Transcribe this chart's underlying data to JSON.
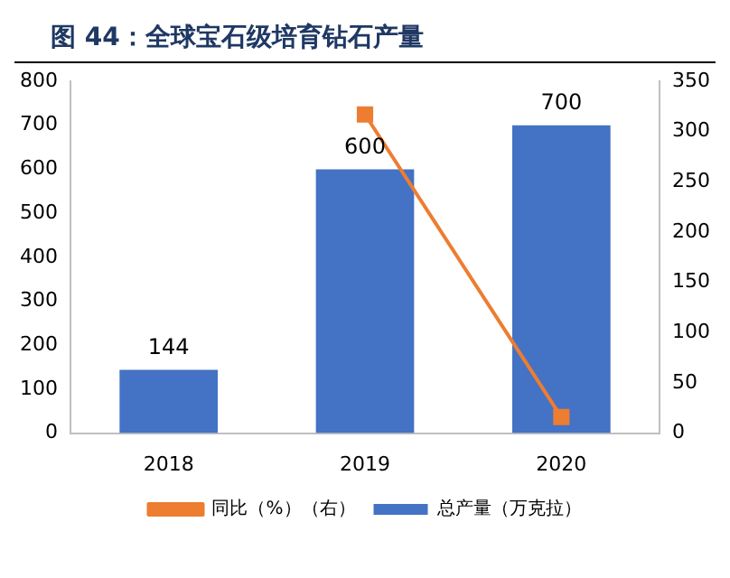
{
  "chart_data": {
    "type": "bar",
    "title": "图 44：全球宝石级培育钻石产量",
    "categories": [
      "2018",
      "2019",
      "2020"
    ],
    "series": [
      {
        "name": "总产量（万克拉）",
        "color": "#4472c4",
        "values": [
          144,
          600,
          700
        ],
        "value_labels": [
          "144",
          "600",
          "700"
        ]
      },
      {
        "name": "同比（%）（右）",
        "type": "line",
        "axis": "y2",
        "color": "#ed7d31",
        "values": [
          null,
          317,
          16
        ],
        "marker": "square"
      }
    ],
    "ylim": [
      0,
      800
    ],
    "yticks": [
      0,
      100,
      200,
      300,
      400,
      500,
      600,
      700,
      800
    ],
    "y2lim": [
      0,
      350
    ],
    "y2ticks": [
      0,
      50,
      100,
      150,
      200,
      250,
      300,
      350
    ],
    "grid": false,
    "legend": "bottom"
  }
}
